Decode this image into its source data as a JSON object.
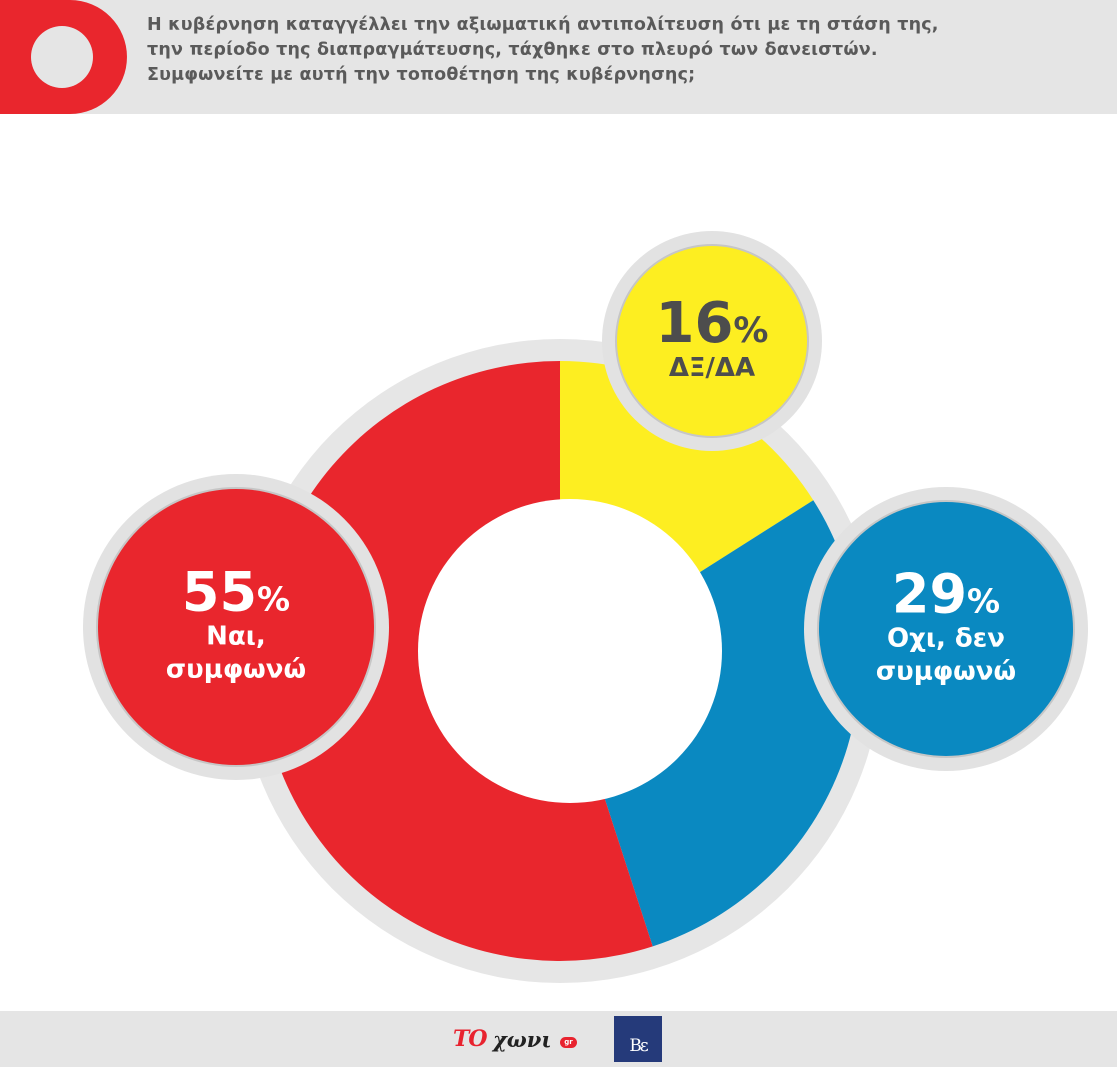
{
  "header": {
    "question_lines": [
      "Η κυβέρνηση καταγγέλλει την αξιωματική αντιπολίτευση ότι με τη στάση της,",
      "την περίοδο της διαπραγμάτευσης, τάχθηκε στο πλευρό των δανειστών.",
      "Συμφωνείτε με αυτή την τοποθέτηση της κυβέρνησης;"
    ]
  },
  "chart_data": {
    "type": "pie",
    "title": "Η κυβέρνηση καταγγέλλει την αξιωματική αντιπολίτευση ότι με τη στάση της, την περίοδο της διαπραγμάτευσης, τάχθηκε στο πλευρό των δανειστών. Συμφωνείτε με αυτή την τοποθέτηση της κυβέρνησης;",
    "slices": [
      {
        "value": 16,
        "display": "16",
        "suffix": "%",
        "label_lines": [
          "ΔΞ/ΔΑ"
        ],
        "color": "#fdee21"
      },
      {
        "value": 29,
        "display": "29",
        "suffix": "%",
        "label_lines": [
          "Οχι, δεν",
          "συμφωνώ"
        ],
        "color": "#0a89c1"
      },
      {
        "value": 55,
        "display": "55",
        "suffix": "%",
        "label_lines": [
          "Ναι,",
          "συμφωνώ"
        ],
        "color": "#e9262d"
      }
    ],
    "start_angle_deg": 0,
    "direction": "clockwise",
    "donut": true,
    "legend": "none"
  },
  "colors": {
    "header_bg": "#e5e5e5",
    "accent_red": "#e9262d",
    "ring_shadow": "#e2e2e2",
    "label_text_dark": "#4d4d4d",
    "label_text_light": "#ffffff"
  },
  "footer": {
    "logo_left_prefix": "ΤΟ",
    "logo_left_name": "χωνι",
    "logo_left_domain": "gr",
    "logo_right_text": "Βε"
  }
}
